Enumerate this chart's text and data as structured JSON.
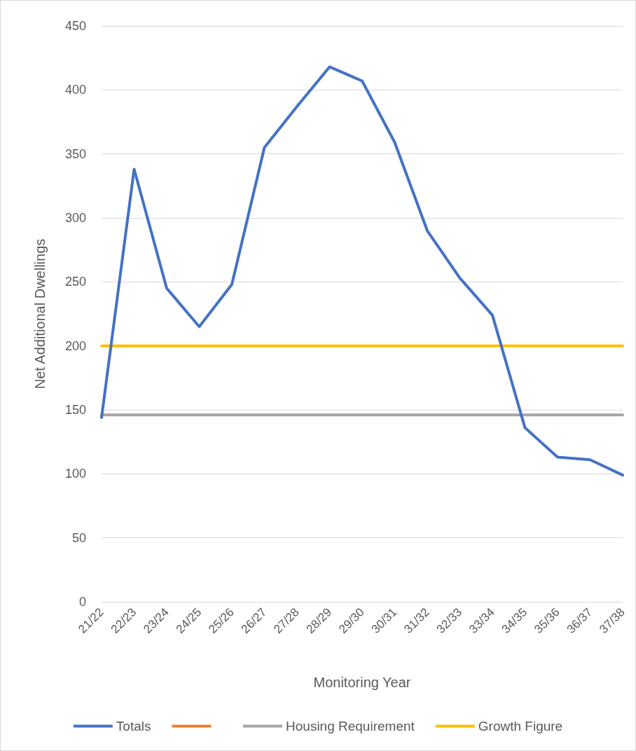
{
  "chart_data": {
    "type": "line",
    "xlabel": "Monitoring Year",
    "ylabel": "Net Additional Dwellings",
    "categories": [
      "21/22",
      "22/23",
      "23/24",
      "24/25",
      "25/26",
      "26/27",
      "27/28",
      "28/29",
      "29/30",
      "30/31",
      "31/32",
      "32/33",
      "33/34",
      "34/35",
      "35/36",
      "36/37",
      "37/38"
    ],
    "series": [
      {
        "name": "Totals",
        "color": "#4472c4",
        "values": [
          144,
          338,
          245,
          215,
          248,
          355,
          387,
          418,
          407,
          359,
          290,
          253,
          224,
          136,
          113,
          111,
          99
        ]
      },
      {
        "color": "#ed7d31",
        "values": [
          null,
          null,
          null,
          null,
          null,
          null,
          null,
          null,
          null,
          null,
          null,
          null,
          null,
          null,
          null,
          null,
          null
        ]
      },
      {
        "name": "Housing Requirement",
        "color": "#a5a5a5",
        "values": [
          146,
          146,
          146,
          146,
          146,
          146,
          146,
          146,
          146,
          146,
          146,
          146,
          146,
          146,
          146,
          146,
          146
        ]
      },
      {
        "name": "Growth Figure",
        "color": "#ffc000",
        "values": [
          200,
          200,
          200,
          200,
          200,
          200,
          200,
          200,
          200,
          200,
          200,
          200,
          200,
          200,
          200,
          200,
          200
        ]
      }
    ],
    "ylim": [
      0,
      450
    ],
    "yticks": [
      0,
      50,
      100,
      150,
      200,
      250,
      300,
      350,
      400,
      450
    ],
    "grid": "y",
    "legend": "bottom",
    "marker": "none",
    "line_style": "solid"
  }
}
